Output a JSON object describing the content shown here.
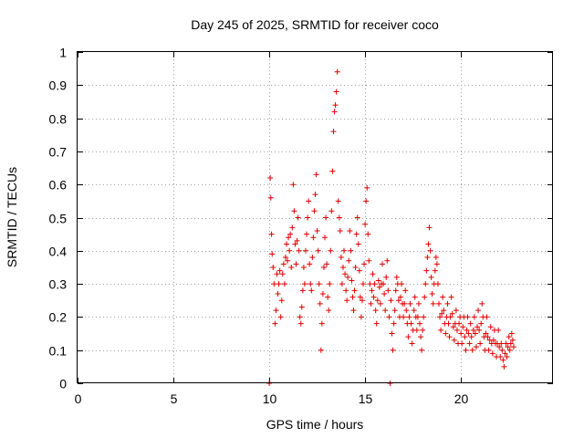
{
  "chart_data": {
    "type": "scatter",
    "title": "Day 245 of 2025, SRMTID for receiver coco",
    "xlabel": "GPS time / hours",
    "ylabel": "SRMTID / TECUs",
    "xlim": [
      0,
      24.8
    ],
    "ylim": [
      0,
      1
    ],
    "xticks": [
      0,
      5,
      10,
      15,
      20
    ],
    "xtick_labels": [
      "0",
      "5",
      "10",
      "15",
      "20"
    ],
    "yticks": [
      0,
      0.1,
      0.2,
      0.3,
      0.4,
      0.5,
      0.6,
      0.7,
      0.8,
      0.9,
      1
    ],
    "ytick_labels": [
      "0",
      "0.1",
      "0.2",
      "0.3",
      "0.4",
      "0.5",
      "0.6",
      "0.7",
      "0.8",
      "0.9",
      "1"
    ],
    "grid": true,
    "marker": "+",
    "color": "#e00000",
    "series": [
      {
        "name": "SRMTID",
        "points": [
          [
            10.0,
            0.0
          ],
          [
            10.05,
            0.62
          ],
          [
            10.08,
            0.56
          ],
          [
            10.12,
            0.45
          ],
          [
            10.15,
            0.39
          ],
          [
            10.2,
            0.35
          ],
          [
            10.25,
            0.3
          ],
          [
            10.3,
            0.18
          ],
          [
            10.35,
            0.22
          ],
          [
            10.4,
            0.33
          ],
          [
            10.45,
            0.27
          ],
          [
            10.5,
            0.3
          ],
          [
            10.55,
            0.34
          ],
          [
            10.6,
            0.2
          ],
          [
            10.65,
            0.25
          ],
          [
            10.7,
            0.33
          ],
          [
            10.75,
            0.36
          ],
          [
            10.8,
            0.3
          ],
          [
            10.85,
            0.38
          ],
          [
            10.9,
            0.42
          ],
          [
            10.95,
            0.37
          ],
          [
            11.0,
            0.44
          ],
          [
            11.05,
            0.4
          ],
          [
            11.1,
            0.45
          ],
          [
            11.15,
            0.35
          ],
          [
            11.2,
            0.47
          ],
          [
            11.25,
            0.6
          ],
          [
            11.3,
            0.52
          ],
          [
            11.35,
            0.42
          ],
          [
            11.4,
            0.36
          ],
          [
            11.45,
            0.43
          ],
          [
            11.5,
            0.5
          ],
          [
            11.55,
            0.4
          ],
          [
            11.6,
            0.2
          ],
          [
            11.65,
            0.18
          ],
          [
            11.7,
            0.23
          ],
          [
            11.75,
            0.28
          ],
          [
            11.8,
            0.35
          ],
          [
            11.85,
            0.3
          ],
          [
            11.9,
            0.4
          ],
          [
            11.95,
            0.45
          ],
          [
            12.0,
            0.5
          ],
          [
            12.05,
            0.55
          ],
          [
            12.1,
            0.36
          ],
          [
            12.15,
            0.3
          ],
          [
            12.2,
            0.28
          ],
          [
            12.25,
            0.38
          ],
          [
            12.3,
            0.44
          ],
          [
            12.35,
            0.52
          ],
          [
            12.4,
            0.57
          ],
          [
            12.45,
            0.63
          ],
          [
            12.5,
            0.46
          ],
          [
            12.55,
            0.4
          ],
          [
            12.6,
            0.3
          ],
          [
            12.65,
            0.24
          ],
          [
            12.7,
            0.1
          ],
          [
            12.75,
            0.18
          ],
          [
            12.8,
            0.27
          ],
          [
            12.85,
            0.35
          ],
          [
            12.9,
            0.44
          ],
          [
            12.95,
            0.5
          ],
          [
            13.0,
            0.36
          ],
          [
            13.05,
            0.26
          ],
          [
            13.1,
            0.22
          ],
          [
            13.15,
            0.3
          ],
          [
            13.2,
            0.4
          ],
          [
            13.25,
            0.52
          ],
          [
            13.3,
            0.64
          ],
          [
            13.35,
            0.76
          ],
          [
            13.4,
            0.82
          ],
          [
            13.45,
            0.84
          ],
          [
            13.5,
            0.88
          ],
          [
            13.55,
            0.94
          ],
          [
            13.6,
            0.55
          ],
          [
            13.65,
            0.5
          ],
          [
            13.7,
            0.46
          ],
          [
            13.75,
            0.38
          ],
          [
            13.8,
            0.3
          ],
          [
            13.85,
            0.35
          ],
          [
            13.9,
            0.4
          ],
          [
            13.95,
            0.33
          ],
          [
            14.0,
            0.28
          ],
          [
            14.05,
            0.25
          ],
          [
            14.1,
            0.32
          ],
          [
            14.15,
            0.37
          ],
          [
            14.2,
            0.46
          ],
          [
            14.25,
            0.4
          ],
          [
            14.3,
            0.31
          ],
          [
            14.35,
            0.26
          ],
          [
            14.4,
            0.22
          ],
          [
            14.45,
            0.28
          ],
          [
            14.5,
            0.35
          ],
          [
            14.55,
            0.45
          ],
          [
            14.6,
            0.5
          ],
          [
            14.65,
            0.42
          ],
          [
            14.7,
            0.34
          ],
          [
            14.75,
            0.26
          ],
          [
            14.8,
            0.2
          ],
          [
            14.85,
            0.25
          ],
          [
            14.9,
            0.3
          ],
          [
            14.95,
            0.36
          ],
          [
            15.0,
            0.48
          ],
          [
            15.05,
            0.55
          ],
          [
            15.1,
            0.59
          ],
          [
            15.15,
            0.45
          ],
          [
            15.2,
            0.37
          ],
          [
            15.25,
            0.3
          ],
          [
            15.3,
            0.24
          ],
          [
            15.35,
            0.28
          ],
          [
            15.4,
            0.33
          ],
          [
            15.45,
            0.26
          ],
          [
            15.5,
            0.3
          ],
          [
            15.55,
            0.22
          ],
          [
            15.6,
            0.18
          ],
          [
            15.65,
            0.25
          ],
          [
            15.7,
            0.31
          ],
          [
            15.75,
            0.29
          ],
          [
            15.8,
            0.24
          ],
          [
            15.85,
            0.3
          ],
          [
            15.9,
            0.36
          ],
          [
            15.95,
            0.3
          ],
          [
            16.0,
            0.27
          ],
          [
            16.05,
            0.22
          ],
          [
            16.1,
            0.32
          ],
          [
            16.15,
            0.37
          ],
          [
            16.2,
            0.28
          ],
          [
            16.25,
            0.2
          ],
          [
            16.3,
            0.0
          ],
          [
            16.35,
            0.25
          ],
          [
            16.4,
            0.15
          ],
          [
            16.45,
            0.1
          ],
          [
            16.5,
            0.18
          ],
          [
            16.55,
            0.22
          ],
          [
            16.6,
            0.28
          ],
          [
            16.65,
            0.32
          ],
          [
            16.7,
            0.3
          ],
          [
            16.75,
            0.25
          ],
          [
            16.8,
            0.2
          ],
          [
            16.85,
            0.26
          ],
          [
            16.9,
            0.3
          ],
          [
            16.95,
            0.24
          ],
          [
            17.0,
            0.2
          ],
          [
            17.05,
            0.24
          ],
          [
            17.1,
            0.28
          ],
          [
            17.15,
            0.22
          ],
          [
            17.2,
            0.18
          ],
          [
            17.25,
            0.14
          ],
          [
            17.3,
            0.2
          ],
          [
            17.35,
            0.24
          ],
          [
            17.4,
            0.18
          ],
          [
            17.45,
            0.12
          ],
          [
            17.5,
            0.16
          ],
          [
            17.55,
            0.22
          ],
          [
            17.6,
            0.26
          ],
          [
            17.65,
            0.2
          ],
          [
            17.7,
            0.16
          ],
          [
            17.75,
            0.2
          ],
          [
            17.8,
            0.24
          ],
          [
            17.85,
            0.18
          ],
          [
            17.9,
            0.14
          ],
          [
            17.95,
            0.1
          ],
          [
            18.0,
            0.16
          ],
          [
            18.05,
            0.2
          ],
          [
            18.1,
            0.26
          ],
          [
            18.15,
            0.3
          ],
          [
            18.2,
            0.34
          ],
          [
            18.25,
            0.38
          ],
          [
            18.3,
            0.42
          ],
          [
            18.35,
            0.47
          ],
          [
            18.4,
            0.4
          ],
          [
            18.45,
            0.32
          ],
          [
            18.5,
            0.27
          ],
          [
            18.55,
            0.24
          ],
          [
            18.6,
            0.3
          ],
          [
            18.65,
            0.34
          ],
          [
            18.7,
            0.38
          ],
          [
            18.75,
            0.36
          ],
          [
            18.8,
            0.3
          ],
          [
            18.85,
            0.24
          ],
          [
            18.9,
            0.2
          ],
          [
            18.95,
            0.16
          ],
          [
            19.0,
            0.21
          ],
          [
            19.05,
            0.26
          ],
          [
            19.1,
            0.22
          ],
          [
            19.15,
            0.18
          ],
          [
            19.2,
            0.15
          ],
          [
            19.25,
            0.2
          ],
          [
            19.3,
            0.24
          ],
          [
            19.35,
            0.18
          ],
          [
            19.4,
            0.14
          ],
          [
            19.45,
            0.2
          ],
          [
            19.5,
            0.26
          ],
          [
            19.55,
            0.21
          ],
          [
            19.6,
            0.17
          ],
          [
            19.65,
            0.13
          ],
          [
            19.7,
            0.18
          ],
          [
            19.75,
            0.22
          ],
          [
            19.8,
            0.16
          ],
          [
            19.85,
            0.12
          ],
          [
            19.9,
            0.18
          ],
          [
            19.95,
            0.2
          ],
          [
            20.0,
            0.15
          ],
          [
            20.05,
            0.12
          ],
          [
            20.1,
            0.17
          ],
          [
            20.15,
            0.2
          ],
          [
            20.2,
            0.14
          ],
          [
            20.25,
            0.1
          ],
          [
            20.3,
            0.16
          ],
          [
            20.35,
            0.2
          ],
          [
            20.4,
            0.15
          ],
          [
            20.45,
            0.12
          ],
          [
            20.5,
            0.18
          ],
          [
            20.55,
            0.14
          ],
          [
            20.6,
            0.1
          ],
          [
            20.65,
            0.16
          ],
          [
            20.7,
            0.2
          ],
          [
            20.75,
            0.15
          ],
          [
            20.8,
            0.11
          ],
          [
            20.85,
            0.17
          ],
          [
            20.9,
            0.22
          ],
          [
            20.95,
            0.16
          ],
          [
            21.0,
            0.12
          ],
          [
            21.05,
            0.18
          ],
          [
            21.1,
            0.24
          ],
          [
            21.15,
            0.2
          ],
          [
            21.2,
            0.14
          ],
          [
            21.25,
            0.1
          ],
          [
            21.3,
            0.15
          ],
          [
            21.35,
            0.2
          ],
          [
            21.4,
            0.14
          ],
          [
            21.45,
            0.1
          ],
          [
            21.5,
            0.13
          ],
          [
            21.55,
            0.17
          ],
          [
            21.6,
            0.12
          ],
          [
            21.65,
            0.09
          ],
          [
            21.7,
            0.13
          ],
          [
            21.75,
            0.16
          ],
          [
            21.8,
            0.12
          ],
          [
            21.85,
            0.08
          ],
          [
            21.9,
            0.12
          ],
          [
            21.95,
            0.16
          ],
          [
            22.0,
            0.11
          ],
          [
            22.05,
            0.08
          ],
          [
            22.1,
            0.12
          ],
          [
            22.15,
            0.1
          ],
          [
            22.2,
            0.07
          ],
          [
            22.25,
            0.05
          ],
          [
            22.3,
            0.09
          ],
          [
            22.35,
            0.12
          ],
          [
            22.4,
            0.08
          ],
          [
            22.45,
            0.11
          ],
          [
            22.5,
            0.14
          ],
          [
            22.55,
            0.1
          ],
          [
            22.6,
            0.12
          ],
          [
            22.65,
            0.15
          ],
          [
            22.7,
            0.13
          ],
          [
            22.75,
            0.11
          ]
        ]
      }
    ]
  }
}
